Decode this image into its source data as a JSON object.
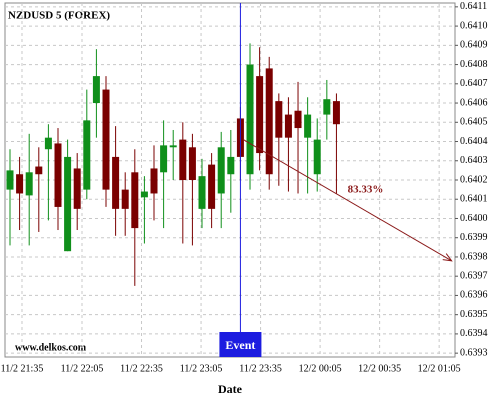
{
  "chart_data": {
    "type": "candlestick",
    "title": "NZDUSD 5 (FOREX)",
    "x_label": "Date",
    "watermark": "www.delkos.com",
    "open": [
      0.64015,
      0.64023,
      0.64012,
      0.64027,
      0.64036,
      0.64039,
      0.63983,
      0.64026,
      0.64015,
      0.6406,
      0.64067,
      0.64032,
      0.64015,
      0.64024,
      0.64011,
      0.64026,
      0.64024,
      0.64037,
      0.64041,
      0.64037,
      0.64005,
      0.64028,
      0.64013,
      0.64023,
      0.64052,
      0.64023,
      0.64074,
      0.64078,
      0.64061,
      0.64054,
      0.64056,
      0.64042,
      0.64023,
      0.64054,
      0.64061
    ],
    "high": [
      0.64036,
      0.64032,
      0.64044,
      0.64037,
      0.64049,
      0.64047,
      0.64041,
      0.64034,
      0.64067,
      0.64088,
      0.64074,
      0.64048,
      0.64024,
      0.64036,
      0.64022,
      0.64038,
      0.64051,
      0.64046,
      0.6405,
      0.64044,
      0.64031,
      0.64034,
      0.64045,
      0.64046,
      0.64058,
      0.64091,
      0.64089,
      0.64084,
      0.64065,
      0.64063,
      0.64071,
      0.64063,
      0.64052,
      0.64072,
      0.64065
    ],
    "low": [
      0.63986,
      0.63994,
      0.63986,
      0.63993,
      0.63999,
      0.63994,
      0.63983,
      0.63994,
      0.6401,
      0.64042,
      0.64006,
      0.63991,
      0.63991,
      0.63965,
      0.63987,
      0.63999,
      0.63995,
      0.6402,
      0.63987,
      0.63986,
      0.63995,
      0.63995,
      0.63995,
      0.64003,
      0.6402,
      0.64015,
      0.64025,
      0.64015,
      0.64017,
      0.64014,
      0.64013,
      0.64013,
      0.64014,
      0.64041,
      0.64013
    ],
    "close": [
      0.64025,
      0.64013,
      0.64024,
      0.64023,
      0.64042,
      0.64006,
      0.64032,
      0.64005,
      0.64051,
      0.64074,
      0.64015,
      0.64005,
      0.64005,
      0.63995,
      0.64014,
      0.64013,
      0.64038,
      0.64038,
      0.6402,
      0.6402,
      0.64022,
      0.64005,
      0.64037,
      0.64032,
      0.64032,
      0.6408,
      0.64034,
      0.64023,
      0.64042,
      0.64042,
      0.64047,
      0.64054,
      0.64041,
      0.64062,
      0.64049
    ],
    "up_color": "#0f8f1a",
    "down_color": "#7a0000",
    "xlim": [
      -0.52,
      46.35
    ],
    "xticks": [
      {
        "value": 1.25,
        "label": "11/2 21:35"
      },
      {
        "value": 7.5,
        "label": "11/2 22:05"
      },
      {
        "value": 13.7,
        "label": "11/2 22:35"
      },
      {
        "value": 19.9,
        "label": "11/2 23:05"
      },
      {
        "value": 26.1,
        "label": "11/2 23:35"
      },
      {
        "value": 32.3,
        "label": "12/2 00:05"
      },
      {
        "value": 38.5,
        "label": "12/2 00:35"
      },
      {
        "value": 44.7,
        "label": "12/2 01:05"
      }
    ],
    "ylim": [
      0.63928,
      0.64112
    ],
    "yticks": [
      0.6393,
      0.6394,
      0.6395,
      0.6396,
      0.6397,
      0.6398,
      0.6399,
      {
        "value": 0.64,
        "label": "0.6400"
      },
      0.6401,
      0.6402,
      0.6403,
      0.6404,
      0.6405,
      0.6406,
      0.6407,
      0.6408,
      0.6409,
      {
        "value": 0.641,
        "label": "0.6410"
      },
      0.6411
    ],
    "grid": true,
    "event": {
      "label": "Event",
      "index": 24,
      "color": "#1c1ce0"
    },
    "projection": {
      "label": "83.33%",
      "x": [
        24.3,
        46
      ],
      "y": [
        0.64041,
        0.63978
      ],
      "color": "#8b1a1a"
    }
  }
}
